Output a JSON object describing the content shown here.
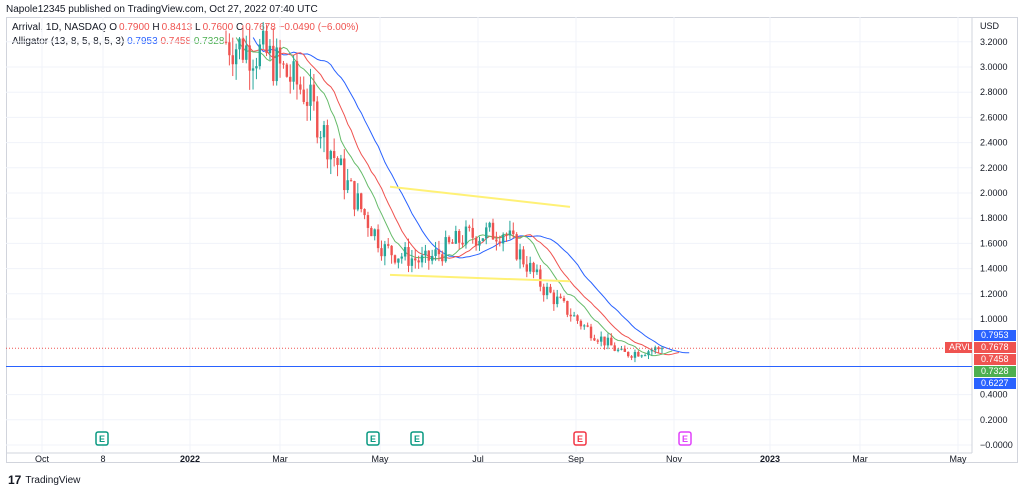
{
  "header": {
    "published": "Napole12345 published on TradingView.com, Oct 27, 2022 07:40 UTC"
  },
  "legend": {
    "symbol": "Arrival, 1D, NASDAQ",
    "o_label": "O",
    "o_value": "0.7900",
    "h_label": "H",
    "h_value": "0.8413",
    "l_label": "L",
    "l_value": "0.7600",
    "c_label": "C",
    "c_value": "0.7678",
    "change": "−0.0490 (−6.00%)",
    "indicator": "Alligator (13, 8, 5, 8, 5, 3)",
    "jaw_value": "0.7953",
    "teeth_value": "0.7458",
    "lips_value": "0.7328"
  },
  "footer": {
    "brand": "TradingView"
  },
  "colors": {
    "up": "#26a69a",
    "down": "#ef5350",
    "jaw": "#2962ff",
    "teeth": "#ef5350",
    "lips": "#66bb6a",
    "channel": "#fff176",
    "hline": "#2962ff",
    "grid": "#f0f3fa"
  },
  "chart_data": {
    "type": "candlestick",
    "symbol": "ARVL",
    "currency": "USD",
    "y_axis_label": "USD",
    "ylim": [
      -0.0,
      3.3
    ],
    "y_ticks": [
      "3.2000",
      "3.0000",
      "2.8000",
      "2.6000",
      "2.4000",
      "2.2000",
      "2.0000",
      "1.8000",
      "1.6000",
      "1.4000",
      "1.2000",
      "1.0000",
      "0.4000",
      "0.2000",
      "−0.0000"
    ],
    "x_ticks": [
      "Oct",
      "8",
      "2022",
      "Mar",
      "May",
      "Jul",
      "Sep",
      "Nov",
      "2023",
      "Mar",
      "May"
    ],
    "price_labels": [
      {
        "label": "",
        "value": "0.7953",
        "color": "#2962ff"
      },
      {
        "label": "ARVL",
        "value": "0.7678",
        "color": "#ef5350"
      },
      {
        "label": "",
        "value": "0.7458",
        "color": "#ef5350"
      },
      {
        "label": "",
        "value": "0.7328",
        "color": "#4caf50"
      },
      {
        "label": "",
        "value": "0.6227",
        "color": "#2962ff"
      }
    ],
    "horizontal_line": 0.6227,
    "last_close": 0.7678,
    "earnings_markers": [
      {
        "date": "2021-11",
        "label": "E",
        "color": "#089981"
      },
      {
        "date": "2022-05",
        "label": "E",
        "color": "#089981"
      },
      {
        "date": "2022-05b",
        "label": "E",
        "color": "#089981"
      },
      {
        "date": "2022-09",
        "label": "E",
        "color": "#f23645"
      },
      {
        "date": "2022-11",
        "label": "E",
        "color": "#e040fb"
      }
    ],
    "price_path_summary": [
      {
        "period": "2022-02",
        "close": 3.2
      },
      {
        "period": "2022-03",
        "close": 3.1
      },
      {
        "period": "2022-04-mid",
        "close": 2.8
      },
      {
        "period": "2022-05-01",
        "close": 2.1
      },
      {
        "period": "2022-05-10",
        "close": 1.55
      },
      {
        "period": "2022-06",
        "close": 1.45
      },
      {
        "period": "2022-07",
        "close": 1.65
      },
      {
        "period": "2022-08",
        "close": 1.7
      },
      {
        "period": "2022-09-01",
        "close": 1.25
      },
      {
        "period": "2022-09-20",
        "close": 0.95
      },
      {
        "period": "2022-10-15",
        "close": 0.72
      },
      {
        "period": "2022-10-27",
        "close": 0.7678
      }
    ],
    "trendlines": [
      {
        "from": {
          "period": "2022-05-05",
          "price": 2.05
        },
        "to": {
          "period": "2022-09-01",
          "price": 1.89
        }
      },
      {
        "from": {
          "period": "2022-05-05",
          "price": 1.35
        },
        "to": {
          "period": "2022-09-01",
          "price": 1.3
        }
      }
    ]
  }
}
